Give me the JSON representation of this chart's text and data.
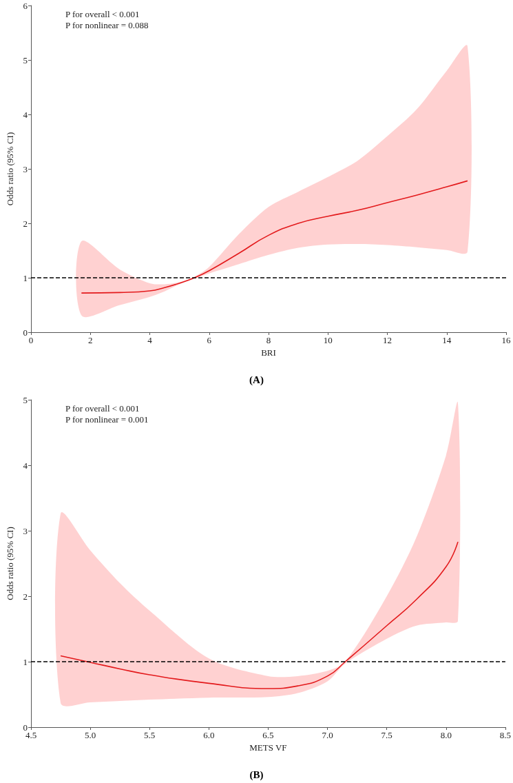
{
  "chart_data": [
    {
      "type": "line",
      "title": "(A)",
      "xlabel": "BRI",
      "ylabel": "Odds ratio (95% CI)",
      "xlim": [
        0,
        16
      ],
      "xticks": [
        0,
        2,
        4,
        6,
        8,
        10,
        12,
        14,
        16
      ],
      "ylim": [
        0,
        6
      ],
      "yticks": [
        0,
        1,
        2,
        3,
        4,
        5,
        6
      ],
      "grid": false,
      "annotations": [
        "P for overall < 0.001",
        "P for nonlinear = 0.088"
      ],
      "ref_lines": [
        {
          "axis": "y",
          "value": 1,
          "color": "#000000",
          "line_style": "dashed"
        }
      ],
      "series": [
        {
          "color": "#e31a1c",
          "x": [
            1.7,
            3,
            4,
            4.5,
            5,
            5.5,
            6,
            7,
            8,
            9,
            10,
            11,
            12,
            13,
            14,
            14.7
          ],
          "values": [
            0.72,
            0.73,
            0.76,
            0.82,
            0.9,
            1.0,
            1.13,
            1.45,
            1.78,
            2.0,
            2.13,
            2.24,
            2.38,
            2.52,
            2.67,
            2.78
          ],
          "lower": [
            0.31,
            0.5,
            0.65,
            0.75,
            0.88,
            0.98,
            1.08,
            1.25,
            1.42,
            1.55,
            1.61,
            1.62,
            1.6,
            1.56,
            1.51,
            1.48
          ],
          "upper": [
            1.67,
            1.15,
            0.9,
            0.88,
            0.92,
            1.02,
            1.2,
            1.8,
            2.3,
            2.58,
            2.85,
            3.15,
            3.6,
            4.1,
            4.8,
            5.25
          ]
        }
      ]
    },
    {
      "type": "line",
      "title": "(B)",
      "xlabel": "METS VF",
      "ylabel": "Odds ratio (95% CI)",
      "xlim": [
        4.5,
        8.5
      ],
      "xticks": [
        {
          "value": 4.5,
          "label": "4.5"
        },
        {
          "value": 5,
          "label": "5.0"
        },
        {
          "value": 5.5,
          "label": "5.5"
        },
        {
          "value": 6,
          "label": "6.0"
        },
        {
          "value": 6.5,
          "label": "6.5"
        },
        {
          "value": 7,
          "label": "7.0"
        },
        {
          "value": 7.5,
          "label": "7.5"
        },
        {
          "value": 8,
          "label": "8.0"
        },
        {
          "value": 8.5,
          "label": "8.5"
        }
      ],
      "ylim": [
        0,
        5
      ],
      "yticks": [
        0,
        1,
        2,
        3,
        4,
        5
      ],
      "grid": false,
      "annotations": [
        "P for overall < 0.001",
        "P for nonlinear = 0.001"
      ],
      "ref_lines": [
        {
          "axis": "y",
          "value": 1,
          "color": "#000000",
          "line_style": "dashed"
        }
      ],
      "series": [
        {
          "color": "#e31a1c",
          "x": [
            4.75,
            5.0,
            5.25,
            5.5,
            6.0,
            6.5,
            6.75,
            7.0,
            7.15,
            7.5,
            7.75,
            8.0,
            8.1
          ],
          "values": [
            1.09,
            0.99,
            0.89,
            0.8,
            0.67,
            0.59,
            0.63,
            0.78,
            1.0,
            1.55,
            1.95,
            2.45,
            2.83
          ],
          "lower": [
            0.37,
            0.38,
            0.4,
            0.42,
            0.45,
            0.46,
            0.52,
            0.7,
            0.97,
            1.35,
            1.55,
            1.6,
            1.62
          ],
          "upper": [
            3.26,
            2.7,
            2.2,
            1.78,
            1.05,
            0.78,
            0.78,
            0.86,
            1.0,
            2.0,
            2.9,
            4.15,
            4.95
          ]
        }
      ]
    }
  ]
}
